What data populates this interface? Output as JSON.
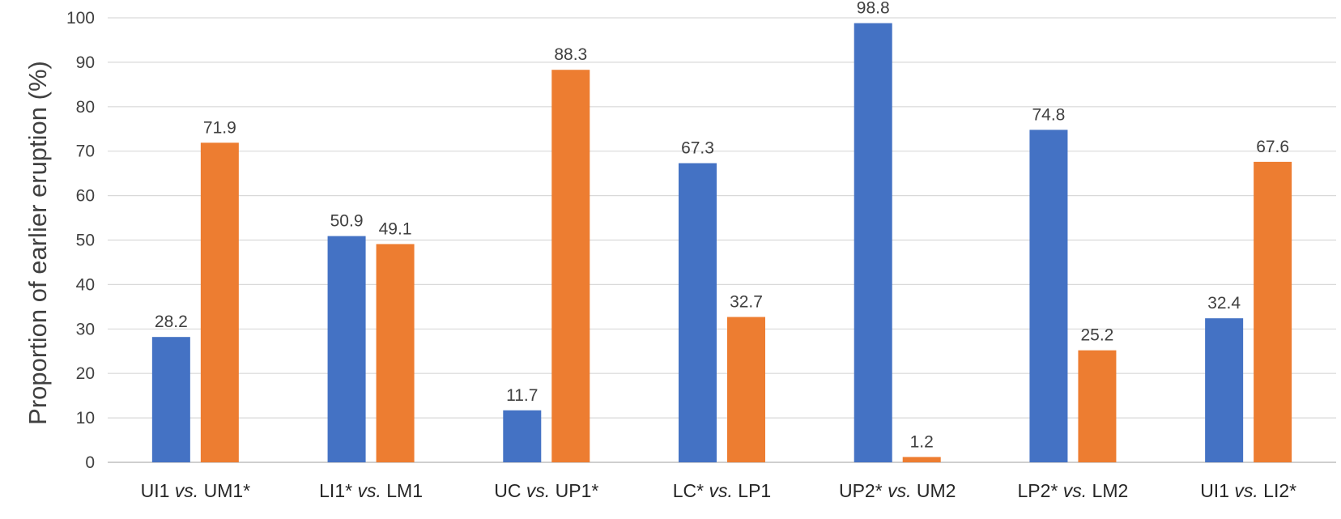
{
  "chart_data": {
    "type": "bar",
    "title": "",
    "xlabel": "",
    "ylabel": "Proportion of earlier eruption (%)",
    "ylim": [
      0,
      100
    ],
    "yticks": [
      0,
      10,
      20,
      30,
      40,
      50,
      60,
      70,
      80,
      90,
      100
    ],
    "grid": true,
    "legend": "none",
    "categories": [
      {
        "a": "UI1",
        "vs": "vs.",
        "b": "UM1*"
      },
      {
        "a": "LI1*",
        "vs": "vs.",
        "b": "LM1"
      },
      {
        "a": "UC",
        "vs": "vs.",
        "b": "UP1*"
      },
      {
        "a": "LC*",
        "vs": "vs.",
        "b": "LP1"
      },
      {
        "a": "UP2*",
        "vs": "vs.",
        "b": "UM2"
      },
      {
        "a": "LP2*",
        "vs": "vs.",
        "b": "LM2"
      },
      {
        "a": "UI1",
        "vs": "vs.",
        "b": "LI2*"
      }
    ],
    "series": [
      {
        "color": "#4472c4",
        "values": [
          28.2,
          50.9,
          11.7,
          67.3,
          98.8,
          74.8,
          32.4
        ],
        "labels": [
          "28.2",
          "50.9",
          "11.7",
          "67.3",
          "98.8",
          "74.8",
          "32.4"
        ]
      },
      {
        "color": "#ed7d31",
        "values": [
          71.9,
          49.1,
          88.3,
          32.7,
          1.2,
          25.2,
          67.6
        ],
        "labels": [
          "71.9",
          "49.1",
          "88.3",
          "32.7",
          "1.2",
          "25.2",
          "67.6"
        ]
      }
    ]
  }
}
